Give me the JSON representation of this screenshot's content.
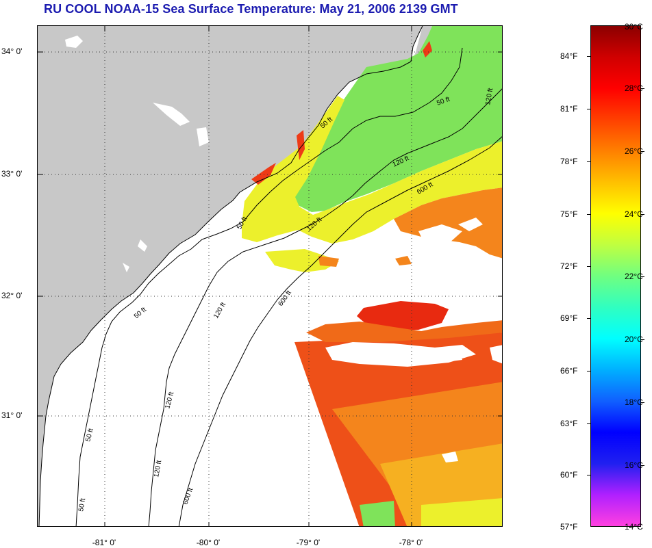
{
  "title": "RU COOL  NOAA-15  Sea Surface Temperature:  May 21, 2006 2139 GMT",
  "map": {
    "lat_labels": [
      "34° 0'",
      "33° 0'",
      "32° 0'",
      "31° 0'"
    ],
    "lon_labels": [
      "-81° 0'",
      "-80° 0'",
      "-79° 0'",
      "-78° 0'"
    ],
    "contour_labels": [
      "50 ft",
      "120 ft",
      "600 ft"
    ],
    "colors": {
      "land": "#c8c8c8",
      "no_data": "#ffffff",
      "sst_green": "#7fe35a",
      "sst_yellow": "#ecf02c",
      "sst_orange": "#f4851c",
      "sst_red": "#ee3a16"
    }
  },
  "colorbar": {
    "fahrenheit_labels": [
      "84°F",
      "81°F",
      "78°F",
      "75°F",
      "72°F",
      "69°F",
      "66°F",
      "63°F",
      "60°F",
      "57°F"
    ],
    "celsius_labels": [
      "30°C",
      "28°C",
      "26°C",
      "24°C",
      "22°C",
      "20°C",
      "18°C",
      "16°C",
      "14°C"
    ],
    "celsius_range": [
      14,
      30
    ],
    "gradient": [
      "#ff40e0",
      "#b020ff",
      "#2020f0",
      "#0000ff",
      "#1060ff",
      "#00b0ff",
      "#00ffff",
      "#30ffc0",
      "#70ff80",
      "#c0ff40",
      "#ffff00",
      "#ffc000",
      "#ff8000",
      "#ff4000",
      "#ff0000",
      "#d00000",
      "#8b0000"
    ]
  }
}
